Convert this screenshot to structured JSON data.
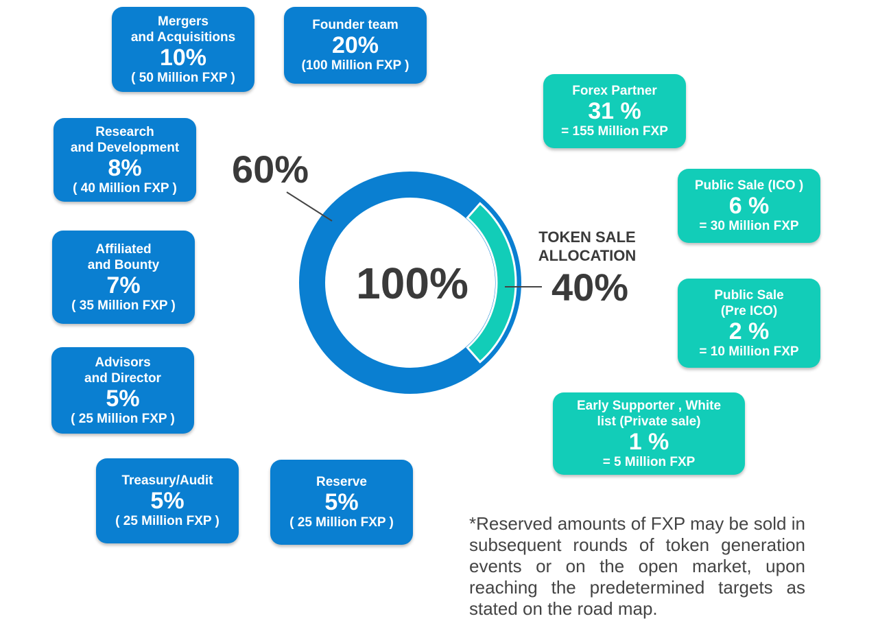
{
  "chart_data": {
    "type": "pie",
    "style": "donut",
    "center_label": "100%",
    "segments": [
      {
        "name": "",
        "value": 60,
        "label": "60%",
        "color": "#0a7fd1"
      },
      {
        "name": "TOKEN SALE ALLOCATION",
        "value": 40,
        "label": "40%",
        "color": "#12cdb8"
      }
    ],
    "token_sale_label": "TOKEN SALE\nALLOCATION",
    "allocations": [
      {
        "title": "Mergers\nand Acquisitions",
        "percent": "10%",
        "amount": "( 50 Million FXP )",
        "value": 10,
        "group": "blue"
      },
      {
        "title": "Founder team",
        "percent": "20%",
        "amount": "(100 Million FXP )",
        "value": 20,
        "group": "blue"
      },
      {
        "title": "Research\nand Development",
        "percent": "8%",
        "amount": "( 40 Million FXP )",
        "value": 8,
        "group": "blue"
      },
      {
        "title": "Affiliated\nand Bounty",
        "percent": "7%",
        "amount": "( 35 Million FXP )",
        "value": 7,
        "group": "blue"
      },
      {
        "title": "Advisors\nand Director",
        "percent": "5%",
        "amount": "( 25 Million FXP )",
        "value": 5,
        "group": "blue"
      },
      {
        "title": "Treasury/Audit",
        "percent": "5%",
        "amount": "( 25 Million FXP )",
        "value": 5,
        "group": "blue"
      },
      {
        "title": "Reserve",
        "percent": "5%",
        "amount": "( 25 Million FXP )",
        "value": 5,
        "group": "blue"
      },
      {
        "title": "Forex Partner",
        "percent": "31 %",
        "amount": "= 155 Million FXP",
        "value": 31,
        "group": "teal"
      },
      {
        "title": "Public Sale (ICO )",
        "percent": "6 %",
        "amount": "= 30 Million FXP",
        "value": 6,
        "group": "teal"
      },
      {
        "title": "Public Sale\n(Pre ICO)",
        "percent": "2 %",
        "amount": "= 10 Million FXP",
        "value": 2,
        "group": "teal"
      },
      {
        "title": "Early Supporter , White\nlist (Private sale)",
        "percent": "1 %",
        "amount": "= 5 Million FXP",
        "value": 1,
        "group": "teal"
      }
    ]
  },
  "footnote": "*Reserved amounts of FXP may be sold in subsequent rounds of token generation events or on the open market, upon reaching the predetermined targets as stated on the road map."
}
